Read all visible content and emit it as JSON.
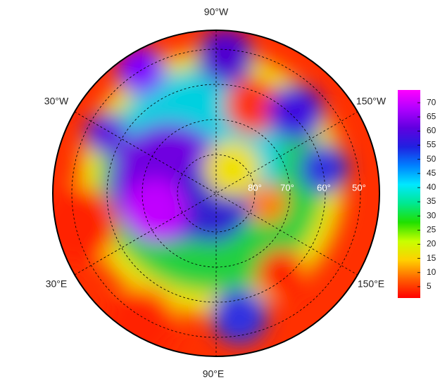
{
  "map": {
    "longitude_labels": [
      "90°W",
      "30°W",
      "150°W",
      "30°E",
      "150°E",
      "90°E"
    ],
    "latitude_labels": [
      "80°",
      "70°",
      "60°",
      "50°"
    ],
    "colorbar": {
      "lim": [
        1,
        74.5
      ],
      "ticks": [
        5,
        10,
        15,
        20,
        25,
        30,
        35,
        40,
        45,
        50,
        55,
        60,
        65,
        70
      ],
      "colors": [
        "#ff0000",
        "#ff6000",
        "#ffd000",
        "#c8ff00",
        "#20e000",
        "#00e890",
        "#00e8ff",
        "#0080ff",
        "#2020e0",
        "#6000e0",
        "#b000ff",
        "#ff00ff"
      ]
    }
  }
}
